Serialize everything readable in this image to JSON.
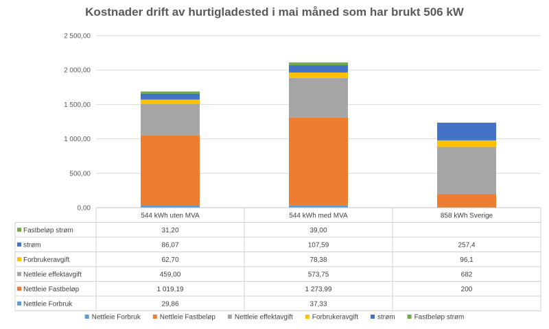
{
  "chart_data": {
    "type": "bar",
    "stacked": true,
    "title": "Kostnader drift av hurtigladested i mai måned som har brukt 506 kW",
    "categories": [
      "544 kWh uten MVA",
      "544 kWh med MVA",
      "858 kWh Sverige"
    ],
    "ylim": [
      0,
      2500
    ],
    "yticks": [
      "0,00",
      "500,00",
      "1 000,00",
      "1 500,00",
      "2 000,00",
      "2 500,00"
    ],
    "grid": true,
    "legend_position": "bottom",
    "series": [
      {
        "name": "Nettleie Forbruk",
        "color": "#5B9BD5",
        "values": [
          29.86,
          37.33,
          0
        ],
        "labels": [
          "29,86",
          "37,33",
          ""
        ]
      },
      {
        "name": "Nettleie Fastbeløp",
        "color": "#ED7D31",
        "values": [
          1019.19,
          1273.99,
          200
        ],
        "labels": [
          "1 019,19",
          "1 273,99",
          "200"
        ]
      },
      {
        "name": "Nettleie effektavgift",
        "color": "#A5A5A5",
        "values": [
          459.0,
          573.75,
          682
        ],
        "labels": [
          "459,00",
          "573,75",
          "682"
        ]
      },
      {
        "name": "Forbrukeravgift",
        "color": "#FFC000",
        "values": [
          62.7,
          78.38,
          96.1
        ],
        "labels": [
          "62,70",
          "78,38",
          "96,1"
        ]
      },
      {
        "name": "strøm",
        "color": "#4472C4",
        "values": [
          86.07,
          107.59,
          257.4
        ],
        "labels": [
          "86,07",
          "107,59",
          "257,4"
        ]
      },
      {
        "name": "Fastbeløp strøm",
        "color": "#70AD47",
        "values": [
          31.2,
          39.0,
          0
        ],
        "labels": [
          "31,20",
          "39,00",
          ""
        ]
      }
    ]
  }
}
